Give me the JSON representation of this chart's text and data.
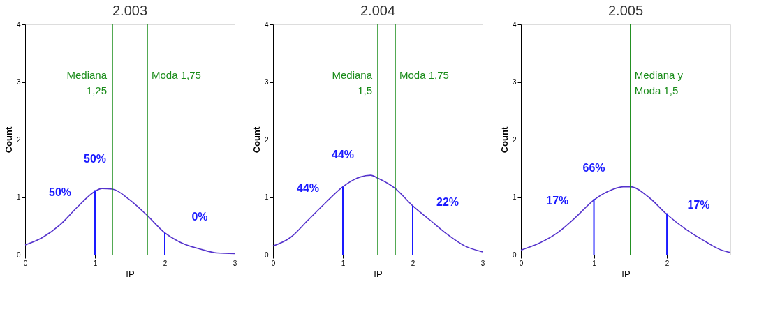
{
  "chart_data": [
    {
      "type": "line",
      "title": "2.003",
      "xlabel": "IP",
      "ylabel": "Count",
      "xlim": [
        0,
        3
      ],
      "ylim": [
        0,
        4
      ],
      "xticks": [
        0,
        1,
        2,
        3
      ],
      "yticks": [
        0,
        1,
        2,
        3,
        4
      ],
      "grid": false,
      "series": [
        {
          "color": "#5533cc",
          "x": [
            0,
            0.25,
            0.5,
            0.75,
            1.0,
            1.1,
            1.25,
            1.5,
            1.75,
            2.0,
            2.25,
            2.5,
            2.75,
            3.0
          ],
          "values": [
            0.17,
            0.3,
            0.52,
            0.83,
            1.1,
            1.15,
            1.14,
            0.95,
            0.68,
            0.38,
            0.2,
            0.1,
            0.03,
            0.02
          ]
        },
        {
          "type": "bar",
          "color": "#1a1aff",
          "x": [
            1,
            2
          ],
          "values": [
            1.12,
            0.38
          ]
        }
      ],
      "ref_lines": [
        {
          "axis": "x",
          "value": 1.25,
          "label": "Mediana\n1,25",
          "color": "#1a8c1a"
        },
        {
          "axis": "x",
          "value": 1.75,
          "label": "Moda 1,75",
          "color": "#1a8c1a"
        }
      ],
      "annotations": [
        "50%",
        "50%",
        "0%"
      ]
    },
    {
      "type": "line",
      "title": "2.004",
      "xlabel": "IP",
      "ylabel": "Count",
      "xlim": [
        0,
        3
      ],
      "ylim": [
        0,
        4
      ],
      "xticks": [
        0,
        1,
        2,
        3
      ],
      "yticks": [
        0,
        1,
        2,
        3,
        4
      ],
      "grid": false,
      "series": [
        {
          "color": "#5533cc",
          "x": [
            0,
            0.25,
            0.5,
            0.75,
            1.0,
            1.25,
            1.4,
            1.5,
            1.75,
            2.0,
            2.25,
            2.5,
            2.75,
            3.0
          ],
          "values": [
            0.15,
            0.3,
            0.6,
            0.9,
            1.18,
            1.35,
            1.38,
            1.33,
            1.15,
            0.85,
            0.6,
            0.35,
            0.15,
            0.05
          ]
        },
        {
          "type": "bar",
          "color": "#1a1aff",
          "x": [
            1,
            2
          ],
          "values": [
            1.18,
            0.85
          ]
        }
      ],
      "ref_lines": [
        {
          "axis": "x",
          "value": 1.5,
          "label": "Mediana\n1,5",
          "color": "#1a8c1a"
        },
        {
          "axis": "x",
          "value": 1.75,
          "label": "Moda 1,75",
          "color": "#1a8c1a"
        }
      ],
      "annotations": [
        "44%",
        "44%",
        "22%"
      ]
    },
    {
      "type": "line",
      "title": "2.005",
      "xlabel": "IP",
      "ylabel": "Count",
      "xlim": [
        0,
        2.87
      ],
      "ylim": [
        0,
        4
      ],
      "xticks": [
        0,
        1,
        2
      ],
      "yticks": [
        0,
        1,
        2,
        3,
        4
      ],
      "grid": false,
      "series": [
        {
          "color": "#5533cc",
          "x": [
            0,
            0.25,
            0.5,
            0.75,
            1.0,
            1.25,
            1.4,
            1.5,
            1.75,
            2.0,
            2.25,
            2.5,
            2.75,
            2.87
          ],
          "values": [
            0.08,
            0.2,
            0.38,
            0.65,
            0.95,
            1.13,
            1.18,
            1.18,
            1.0,
            0.7,
            0.45,
            0.25,
            0.08,
            0.04
          ]
        },
        {
          "type": "bar",
          "color": "#1a1aff",
          "x": [
            1,
            2
          ],
          "values": [
            0.97,
            0.72
          ]
        }
      ],
      "ref_lines": [
        {
          "axis": "x",
          "value": 1.5,
          "label": "Mediana y\nModa 1,5",
          "color": "#1a8c1a"
        }
      ],
      "annotations": [
        "17%",
        "66%",
        "17%"
      ]
    }
  ]
}
